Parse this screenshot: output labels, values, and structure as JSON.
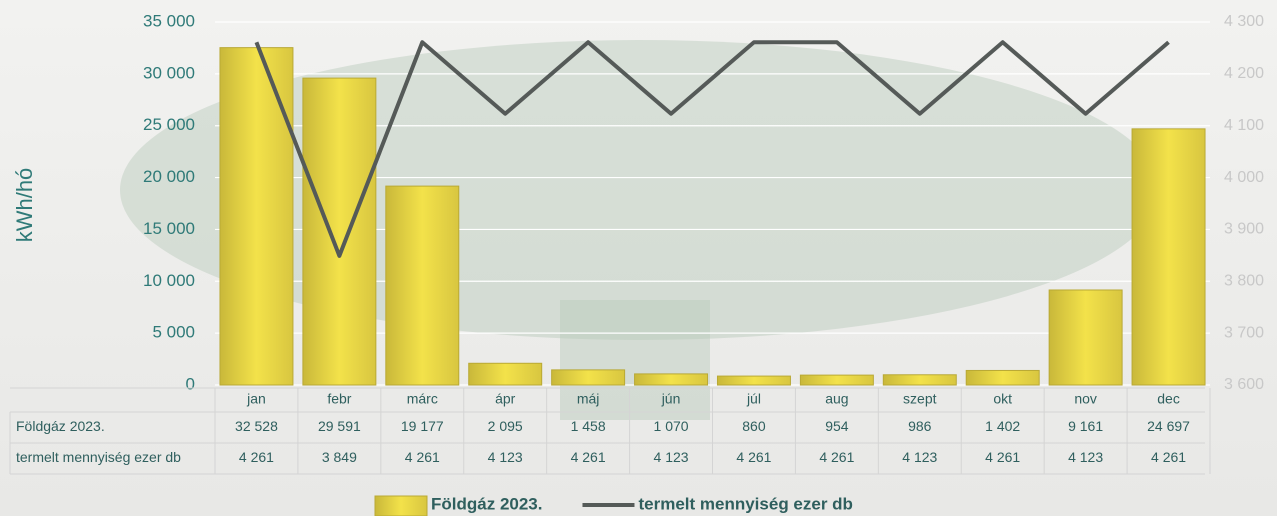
{
  "chart_data": {
    "type": "bar",
    "categories": [
      "jan",
      "febr",
      "márc",
      "ápr",
      "máj",
      "jún",
      "júl",
      "aug",
      "szept",
      "okt",
      "nov",
      "dec"
    ],
    "series": [
      {
        "name": "Földgáz 2023.",
        "type": "bar",
        "color": "#f3e24a",
        "values": [
          32528,
          29591,
          19177,
          2095,
          1458,
          1070,
          860,
          954,
          986,
          1402,
          9161,
          24697
        ],
        "value_labels": [
          "32 528",
          "29 591",
          "19 177",
          "2 095",
          "1 458",
          "1 070",
          "860",
          "954",
          "986",
          "1 402",
          "9 161",
          "24 697"
        ]
      },
      {
        "name": "termelt mennyiség ezer db",
        "type": "line",
        "axis": "y2",
        "color": "#555a58",
        "values": [
          4261,
          3849,
          4261,
          4123,
          4261,
          4123,
          4261,
          4261,
          4123,
          4261,
          4123,
          4261
        ],
        "value_labels": [
          "4 261",
          "3 849",
          "4 261",
          "4 123",
          "4 261",
          "4 123",
          "4 261",
          "4 261",
          "4 123",
          "4 261",
          "4 123",
          "4 261"
        ]
      }
    ],
    "y_label": "kWh/hó",
    "ylim": [
      0,
      35000
    ],
    "yticks": [
      0,
      {
        "value": 5000,
        "label": "5 000"
      },
      {
        "value": 10000,
        "label": "10 000"
      },
      {
        "value": 15000,
        "label": "15 000"
      },
      {
        "value": 20000,
        "label": "20 000"
      },
      {
        "value": 25000,
        "label": "25 000"
      },
      {
        "value": 30000,
        "label": "30 000"
      },
      {
        "value": 35000,
        "label": "35 000"
      }
    ],
    "y2lim": [
      3600,
      4300
    ],
    "y2ticks": [
      {
        "value": 3600,
        "label": "3 600"
      },
      {
        "value": 3700,
        "label": "3 700"
      },
      {
        "value": 3800,
        "label": "3 800"
      },
      {
        "value": 3900,
        "label": "3 900"
      },
      {
        "value": 4000,
        "label": "4 000"
      },
      {
        "value": 4100,
        "label": "4 100"
      },
      {
        "value": 4200,
        "label": "4 200"
      },
      {
        "value": 4300,
        "label": "4 300"
      }
    ],
    "grid": true,
    "legend": "bottom"
  }
}
